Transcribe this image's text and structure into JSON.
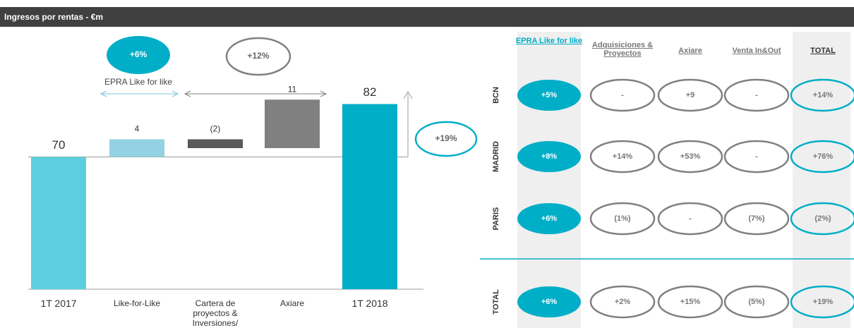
{
  "header": {
    "title": "Ingresos por rentas - €m"
  },
  "chart_data": {
    "type": "waterfall",
    "categories": [
      "1T 2017",
      "Like-for-Like",
      "Cartera de proyectos & Inversiones/",
      "Axiare",
      "1T 2018"
    ],
    "values": [
      70,
      4,
      -2,
      11,
      82
    ],
    "value_labels": [
      "70",
      "4",
      "(2)",
      "11",
      "82"
    ],
    "colors": [
      "#5ccfde",
      "#92d2e3",
      "#595959",
      "#808080",
      "#00aec7"
    ],
    "ylim": [
      40,
      85
    ],
    "annotations": {
      "lfl_badge": "+6%",
      "lfl_label": "EPRA Like for like",
      "mid_badge": "+12%",
      "total_badge": "+19%"
    }
  },
  "table": {
    "columns": [
      "EPRA Like for like",
      "Adquisiciones & Proyectos",
      "Axiare",
      "Venta In&Out",
      "TOTAL"
    ],
    "rows": [
      {
        "label": "BCN",
        "cells": [
          "+5%",
          "-",
          "+9",
          "-",
          "+14%"
        ]
      },
      {
        "label": "MADRID",
        "cells": [
          "+8%",
          "+14%",
          "+53%",
          "-",
          "+76%"
        ]
      },
      {
        "label": "PARIS",
        "cells": [
          "+6%",
          "(1%)",
          "-",
          "(7%)",
          "(2%)"
        ]
      },
      {
        "label": "TOTAL",
        "cells": [
          "+6%",
          "+2%",
          "+15%",
          "(5%)",
          "+19%"
        ]
      }
    ]
  }
}
